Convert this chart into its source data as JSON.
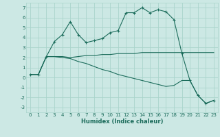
{
  "xlabel": "Humidex (Indice chaleur)",
  "bg_color": "#cce8e4",
  "grid_color": "#aad4cc",
  "line_color": "#1a6b5a",
  "xlim": [
    -0.5,
    23.5
  ],
  "ylim": [
    -3.5,
    7.5
  ],
  "xticks": [
    0,
    1,
    2,
    3,
    4,
    5,
    6,
    7,
    8,
    9,
    10,
    11,
    12,
    13,
    14,
    15,
    16,
    17,
    18,
    19,
    20,
    21,
    22,
    23
  ],
  "yticks": [
    -3,
    -2,
    -1,
    0,
    1,
    2,
    3,
    4,
    5,
    6,
    7
  ],
  "line1_x": [
    0,
    1,
    2,
    3,
    4,
    5,
    6,
    7,
    8,
    9,
    10,
    11,
    12,
    13,
    14,
    15,
    16,
    17,
    18,
    19,
    20,
    21,
    22,
    23
  ],
  "line1_y": [
    0.3,
    0.3,
    2.1,
    3.6,
    4.3,
    5.6,
    4.3,
    3.5,
    3.7,
    3.9,
    4.5,
    4.7,
    6.5,
    6.5,
    7.0,
    6.5,
    6.8,
    6.6,
    5.8,
    2.4,
    -0.3,
    -1.8,
    -2.6,
    -2.3
  ],
  "line2_x": [
    0,
    1,
    2,
    3,
    4,
    5,
    6,
    7,
    8,
    9,
    10,
    11,
    12,
    13,
    14,
    15,
    16,
    17,
    18,
    19,
    20,
    21,
    22,
    23
  ],
  "line2_y": [
    0.3,
    0.3,
    2.1,
    2.1,
    2.1,
    2.0,
    2.1,
    2.2,
    2.2,
    2.3,
    2.3,
    2.4,
    2.4,
    2.4,
    2.5,
    2.5,
    2.5,
    2.5,
    2.5,
    2.5,
    2.5,
    2.5,
    2.5,
    2.5
  ],
  "line3_x": [
    0,
    1,
    2,
    3,
    4,
    5,
    6,
    7,
    8,
    9,
    10,
    11,
    12,
    13,
    14,
    15,
    16,
    17,
    18,
    19,
    20,
    21,
    22,
    23
  ],
  "line3_y": [
    0.3,
    0.3,
    2.1,
    2.1,
    2.0,
    1.9,
    1.6,
    1.4,
    1.1,
    0.8,
    0.6,
    0.3,
    0.1,
    -0.1,
    -0.3,
    -0.5,
    -0.7,
    -0.9,
    -0.8,
    -0.3,
    -0.3,
    -1.8,
    -2.6,
    -2.3
  ],
  "xlabel_fontsize": 6.0,
  "tick_fontsize": 5.0
}
